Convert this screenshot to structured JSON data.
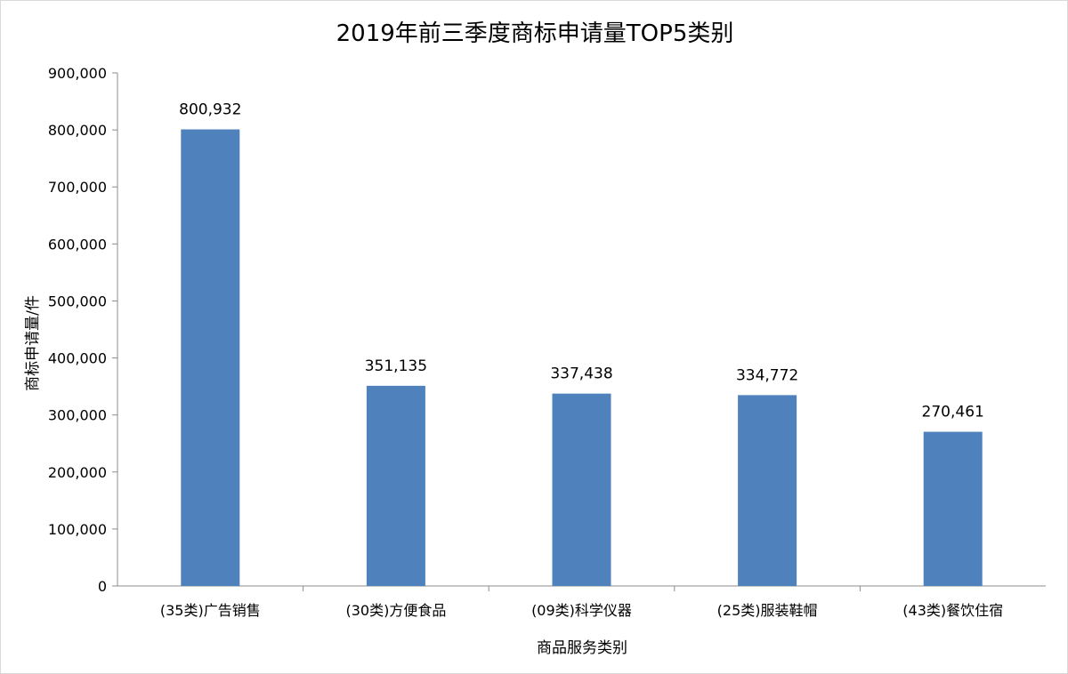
{
  "chart_data": {
    "type": "bar",
    "title": "2019年前三季度商标申请量TOP5类别",
    "xlabel": "商品服务类别",
    "ylabel": "商标申请量/件",
    "categories": [
      "(35类)广告销售",
      "(30类)方便食品",
      "(09类)科学仪器",
      "(25类)服装鞋帽",
      "(43类)餐饮住宿"
    ],
    "values": [
      800932,
      351135,
      337438,
      334772,
      270461
    ],
    "value_labels": [
      "800,932",
      "351,135",
      "337,438",
      "334,772",
      "270,461"
    ],
    "ylim": [
      0,
      900000
    ],
    "yticks": [
      0,
      100000,
      200000,
      300000,
      400000,
      500000,
      600000,
      700000,
      800000,
      900000
    ],
    "ytick_labels": [
      "0",
      "100,000",
      "200,000",
      "300,000",
      "400,000",
      "500,000",
      "600,000",
      "700,000",
      "800,000",
      "900,000"
    ],
    "grid": false,
    "legend": "none",
    "colors": {
      "bar": "#4F81BD",
      "axis": "#8c8c8c"
    }
  }
}
